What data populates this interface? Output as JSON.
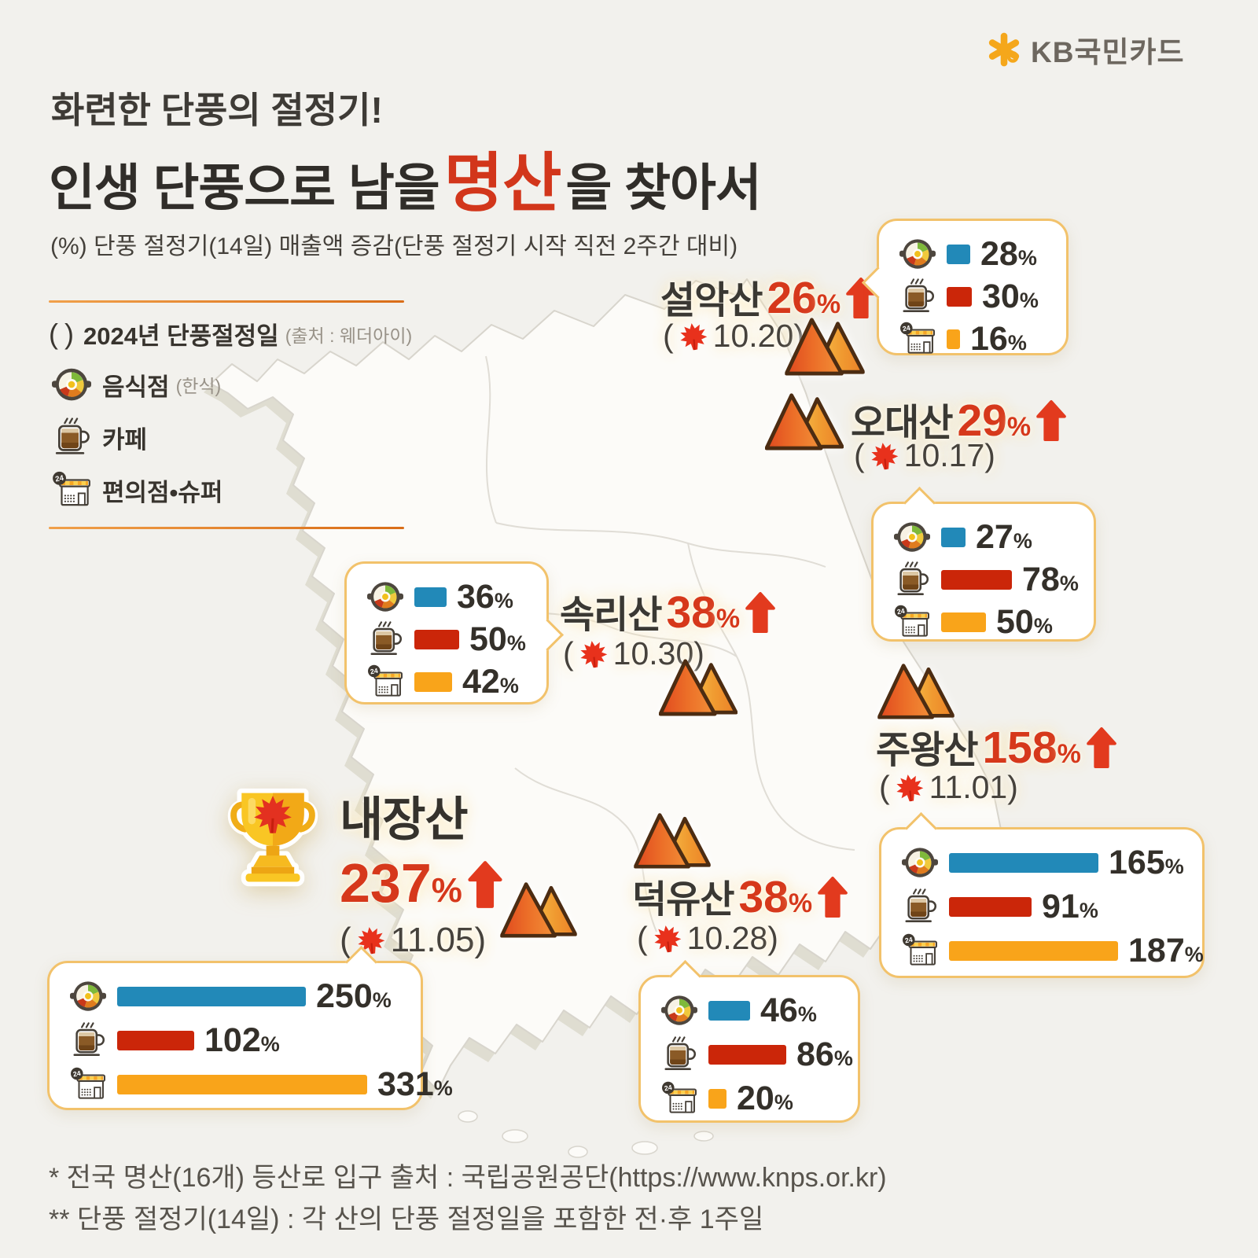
{
  "unit": "%",
  "punct": {
    "open": "(",
    "close": ")"
  },
  "brand": {
    "name": "KB국민카드"
  },
  "header": {
    "kicker": "화련한 단풍의 절정기!",
    "title_prefix": "인생 단풍으로 남을",
    "title_highlight": "명산",
    "title_suffix": "을 찾아서",
    "subtitle": "(%) 단풍 절정기(14일) 매출액 증감(단풍 절정기 시작 직전 2주간 대비)"
  },
  "legend": {
    "peak_label": "2024년 단풍절정일",
    "peak_source": "(출처 : 웨더아이)",
    "categories": [
      {
        "label": "음식점",
        "sub": "(한식)",
        "color": "#2289b8"
      },
      {
        "label": "카페",
        "sub": "",
        "color": "#cb2609"
      },
      {
        "label": "편의점•슈퍼",
        "sub": "",
        "color": "#f9a41a"
      }
    ]
  },
  "mountains": [
    {
      "name": "설악산",
      "pct": "26",
      "date": "10.20",
      "values": [
        28,
        30,
        16
      ]
    },
    {
      "name": "오대산",
      "pct": "29",
      "date": "10.17",
      "values": [
        27,
        78,
        50
      ]
    },
    {
      "name": "속리산",
      "pct": "38",
      "date": "10.30",
      "values": [
        36,
        50,
        42
      ]
    },
    {
      "name": "주왕산",
      "pct": "158",
      "date": "11.01",
      "values": [
        165,
        91,
        187
      ]
    },
    {
      "name": "내장산",
      "pct": "237",
      "date": "11.05",
      "values": [
        250,
        102,
        331
      ]
    },
    {
      "name": "덕유산",
      "pct": "38",
      "date": "10.28",
      "values": [
        46,
        86,
        20
      ]
    }
  ],
  "footnotes": [
    "* 전국 명산(16개) 등산로 입구 출처 : 국립공원공단(https://www.knps.or.kr)",
    "** 단풍 절정기(14일) : 각 산의 단풍 절정일을 포함한 전·후 1주일"
  ],
  "chart_data": {
    "type": "bar",
    "title": "인생 단풍으로 남을 명산을 찾아서",
    "kicker": "화련한 단풍의 절정기!",
    "subtitle": "(%) 단풍 절정기(14일) 매출액 증감(단풍 절정기 시작 직전 2주간 대비)",
    "unit": "%",
    "categories": [
      "음식점(한식)",
      "카페",
      "편의점•슈퍼"
    ],
    "category_colors": [
      "#2289b8",
      "#cb2609",
      "#f9a41a"
    ],
    "peak_date_source": "웨더아이",
    "series": [
      {
        "name": "설악산",
        "peak_date": "10.20",
        "overall_pct": 26,
        "values": [
          28,
          30,
          16
        ]
      },
      {
        "name": "오대산",
        "peak_date": "10.17",
        "overall_pct": 29,
        "values": [
          27,
          78,
          50
        ]
      },
      {
        "name": "속리산",
        "peak_date": "10.30",
        "overall_pct": 38,
        "values": [
          36,
          50,
          42
        ]
      },
      {
        "name": "주왕산",
        "peak_date": "11.01",
        "overall_pct": 158,
        "values": [
          165,
          91,
          187
        ]
      },
      {
        "name": "내장산",
        "peak_date": "11.05",
        "overall_pct": 237,
        "values": [
          250,
          102,
          331
        ],
        "top_mountain": true
      },
      {
        "name": "덕유산",
        "peak_date": "10.28",
        "overall_pct": 38,
        "values": [
          46,
          86,
          20
        ]
      }
    ]
  }
}
